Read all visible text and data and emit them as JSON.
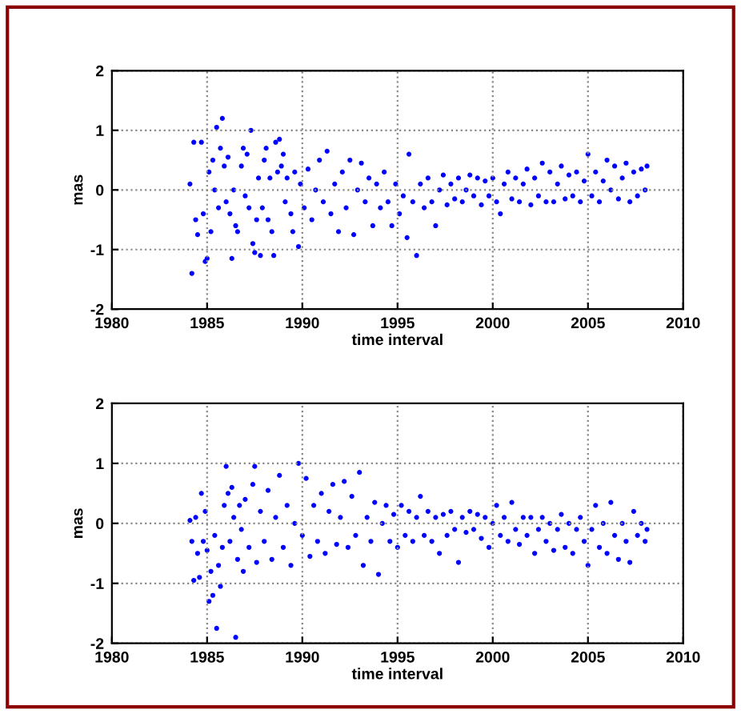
{
  "chart_data": [
    {
      "type": "scatter",
      "xlabel": "time interval",
      "ylabel": "mas",
      "xlim": [
        1980,
        2010
      ],
      "xticks": [
        1980,
        1985,
        1990,
        1995,
        2000,
        2005,
        2010
      ],
      "ylim": [
        -2,
        2
      ],
      "yticks": [
        -2,
        -1,
        0,
        1,
        2
      ],
      "grid": true,
      "marker": "circle",
      "series": [
        {
          "color": "#0000ff",
          "x": [
            1984.1,
            1984.2,
            1984.3,
            1984.4,
            1984.5,
            1984.7,
            1984.8,
            1984.9,
            1985.0,
            1985.1,
            1985.2,
            1985.3,
            1985.4,
            1985.5,
            1985.6,
            1985.7,
            1985.8,
            1985.9,
            1986.0,
            1986.1,
            1986.2,
            1986.3,
            1986.4,
            1986.5,
            1986.6,
            1986.8,
            1986.9,
            1987.0,
            1987.1,
            1987.2,
            1987.3,
            1987.4,
            1987.5,
            1987.6,
            1987.7,
            1987.8,
            1987.9,
            1988.0,
            1988.1,
            1988.2,
            1988.3,
            1988.4,
            1988.5,
            1988.6,
            1988.7,
            1988.8,
            1988.9,
            1989.0,
            1989.1,
            1989.2,
            1989.4,
            1989.5,
            1989.6,
            1989.8,
            1989.9,
            1990.1,
            1990.3,
            1990.5,
            1990.7,
            1990.9,
            1991.1,
            1991.3,
            1991.5,
            1991.7,
            1991.9,
            1992.1,
            1992.3,
            1992.5,
            1992.7,
            1992.9,
            1993.1,
            1993.3,
            1993.5,
            1993.7,
            1993.9,
            1994.1,
            1994.3,
            1994.5,
            1994.7,
            1994.9,
            1995.1,
            1995.3,
            1995.5,
            1995.6,
            1995.8,
            1996.0,
            1996.2,
            1996.4,
            1996.6,
            1996.8,
            1997.0,
            1997.2,
            1997.4,
            1997.6,
            1997.8,
            1998.0,
            1998.2,
            1998.4,
            1998.6,
            1998.8,
            1999.0,
            1999.2,
            1999.4,
            1999.6,
            1999.8,
            2000.0,
            2000.2,
            2000.4,
            2000.6,
            2000.8,
            2001.0,
            2001.2,
            2001.4,
            2001.6,
            2001.8,
            2002.0,
            2002.2,
            2002.4,
            2002.6,
            2002.8,
            2003.0,
            2003.2,
            2003.4,
            2003.6,
            2003.8,
            2004.0,
            2004.2,
            2004.4,
            2004.6,
            2004.8,
            2005.0,
            2005.2,
            2005.4,
            2005.6,
            2005.8,
            2006.0,
            2006.2,
            2006.4,
            2006.6,
            2006.8,
            2007.0,
            2007.2,
            2007.4,
            2007.6,
            2007.8,
            2008.0,
            2008.1
          ],
          "values": [
            0.1,
            -1.4,
            0.8,
            -0.5,
            -0.75,
            0.8,
            -0.4,
            -1.2,
            -1.15,
            0.3,
            -0.7,
            0.5,
            0.0,
            1.05,
            -0.3,
            0.7,
            1.2,
            0.4,
            -0.2,
            0.55,
            -0.4,
            -1.15,
            0.0,
            -0.6,
            -0.7,
            0.4,
            0.7,
            -0.1,
            0.6,
            -0.3,
            1.0,
            -0.9,
            -1.05,
            -0.5,
            0.2,
            -1.1,
            -0.3,
            0.5,
            0.7,
            -0.5,
            0.2,
            -0.7,
            -1.1,
            0.8,
            0.3,
            0.85,
            0.4,
            0.6,
            -0.2,
            0.2,
            -0.4,
            -0.7,
            0.3,
            -0.95,
            0.1,
            -0.3,
            0.35,
            -0.5,
            0.0,
            0.5,
            -0.2,
            0.65,
            -0.4,
            0.1,
            -0.7,
            0.3,
            -0.3,
            0.5,
            -0.75,
            0.0,
            0.45,
            -0.2,
            0.2,
            -0.6,
            0.1,
            -0.3,
            0.3,
            -0.2,
            -0.6,
            0.1,
            -0.4,
            -0.1,
            -0.8,
            0.6,
            -0.2,
            -1.1,
            0.1,
            -0.3,
            0.2,
            -0.2,
            -0.6,
            0.0,
            0.25,
            -0.25,
            0.1,
            -0.15,
            0.2,
            -0.2,
            0.0,
            0.25,
            -0.1,
            0.2,
            -0.25,
            0.15,
            -0.1,
            0.2,
            -0.2,
            -0.4,
            0.1,
            0.3,
            -0.15,
            0.2,
            -0.2,
            0.1,
            0.35,
            -0.25,
            0.2,
            -0.1,
            0.45,
            -0.2,
            0.3,
            -0.2,
            0.1,
            0.4,
            -0.15,
            0.25,
            -0.1,
            0.3,
            -0.2,
            0.15,
            0.6,
            -0.1,
            0.3,
            -0.2,
            0.15,
            0.5,
            0.0,
            0.4,
            -0.15,
            0.2,
            0.45,
            -0.2,
            0.3,
            -0.1,
            0.35,
            0.0,
            0.4
          ]
        }
      ]
    },
    {
      "type": "scatter",
      "xlabel": "time interval",
      "ylabel": "mas",
      "xlim": [
        1980,
        2010
      ],
      "xticks": [
        1980,
        1985,
        1990,
        1995,
        2000,
        2005,
        2010
      ],
      "ylim": [
        -2,
        2
      ],
      "yticks": [
        -2,
        -1,
        0,
        1,
        2
      ],
      "grid": true,
      "marker": "circle",
      "series": [
        {
          "color": "#0000ff",
          "x": [
            1984.1,
            1984.2,
            1984.3,
            1984.4,
            1984.5,
            1984.6,
            1984.7,
            1984.8,
            1984.9,
            1985.0,
            1985.1,
            1985.2,
            1985.3,
            1985.4,
            1985.5,
            1985.6,
            1985.7,
            1985.8,
            1985.9,
            1986.0,
            1986.1,
            1986.2,
            1986.3,
            1986.4,
            1986.5,
            1986.6,
            1986.7,
            1986.8,
            1986.9,
            1987.0,
            1987.2,
            1987.4,
            1987.5,
            1987.6,
            1987.8,
            1988.0,
            1988.2,
            1988.4,
            1988.6,
            1988.8,
            1989.0,
            1989.2,
            1989.4,
            1989.6,
            1989.8,
            1990.0,
            1990.2,
            1990.4,
            1990.6,
            1990.8,
            1991.0,
            1991.2,
            1991.4,
            1991.6,
            1991.8,
            1992.0,
            1992.2,
            1992.4,
            1992.6,
            1992.8,
            1993.0,
            1993.2,
            1993.4,
            1993.6,
            1993.8,
            1994.0,
            1994.2,
            1994.4,
            1994.6,
            1994.8,
            1995.0,
            1995.2,
            1995.4,
            1995.6,
            1995.8,
            1996.0,
            1996.2,
            1996.4,
            1996.6,
            1996.8,
            1997.0,
            1997.2,
            1997.4,
            1997.6,
            1997.8,
            1998.0,
            1998.2,
            1998.4,
            1998.6,
            1998.8,
            1999.0,
            1999.2,
            1999.4,
            1999.6,
            1999.8,
            2000.0,
            2000.2,
            2000.4,
            2000.6,
            2000.8,
            2001.0,
            2001.2,
            2001.4,
            2001.6,
            2001.8,
            2002.0,
            2002.2,
            2002.4,
            2002.6,
            2002.8,
            2003.0,
            2003.2,
            2003.4,
            2003.6,
            2003.8,
            2004.0,
            2004.2,
            2004.4,
            2004.6,
            2004.8,
            2005.0,
            2005.2,
            2005.4,
            2005.6,
            2005.8,
            2006.0,
            2006.2,
            2006.4,
            2006.6,
            2006.8,
            2007.0,
            2007.2,
            2007.4,
            2007.6,
            2007.8,
            2008.0,
            2008.1
          ],
          "values": [
            0.05,
            -0.3,
            -0.95,
            0.1,
            -0.5,
            -0.9,
            0.5,
            -0.3,
            0.2,
            -0.45,
            -1.3,
            -0.8,
            -1.2,
            -0.2,
            -1.75,
            -0.7,
            -1.05,
            -0.4,
            0.3,
            0.95,
            0.5,
            -0.3,
            0.6,
            0.1,
            -1.9,
            -0.6,
            0.3,
            -0.1,
            -0.8,
            0.4,
            -0.4,
            0.65,
            0.95,
            -0.65,
            0.2,
            -0.3,
            0.55,
            -0.6,
            0.1,
            0.8,
            -0.4,
            0.3,
            -0.7,
            0.0,
            1.0,
            -0.2,
            0.75,
            -0.55,
            0.3,
            -0.3,
            0.5,
            -0.5,
            0.2,
            0.65,
            -0.35,
            0.1,
            0.7,
            -0.4,
            0.45,
            -0.2,
            0.85,
            -0.7,
            0.1,
            -0.3,
            0.35,
            -0.85,
            0.0,
            0.3,
            -0.3,
            0.15,
            -0.4,
            0.3,
            -0.2,
            0.2,
            -0.3,
            0.1,
            0.45,
            -0.2,
            0.2,
            -0.3,
            0.1,
            -0.5,
            0.15,
            -0.2,
            0.2,
            -0.1,
            -0.65,
            0.1,
            -0.15,
            0.2,
            -0.1,
            0.15,
            -0.25,
            0.1,
            -0.4,
            0.0,
            0.3,
            -0.2,
            0.1,
            -0.3,
            0.35,
            -0.1,
            -0.35,
            0.1,
            -0.2,
            0.1,
            -0.5,
            -0.1,
            0.1,
            -0.3,
            0.0,
            -0.45,
            -0.1,
            0.15,
            -0.4,
            0.0,
            -0.5,
            -0.1,
            0.1,
            -0.3,
            -0.7,
            -0.1,
            0.3,
            -0.4,
            0.0,
            -0.5,
            0.35,
            -0.2,
            -0.6,
            0.0,
            -0.3,
            -0.65,
            0.2,
            -0.2,
            0.0,
            -0.3,
            -0.1
          ]
        }
      ]
    }
  ]
}
